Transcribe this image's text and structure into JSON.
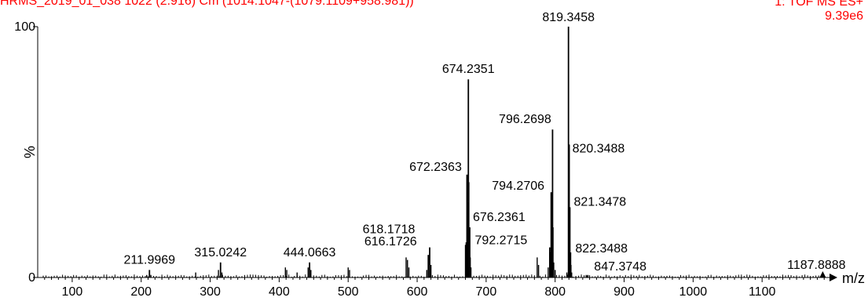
{
  "header": {
    "sample_line": "HRMS_2019_01_038 1022 (2.916) Cm (1014:1047-(1079:1109+958:981))",
    "scan_mode": "1: TOF MS ES+",
    "intensity": "9.39e6"
  },
  "colors": {
    "header_text": "#ff0000",
    "spectrum": "#000000",
    "axis": "#000000"
  },
  "chart_data": {
    "type": "bar",
    "plot_style": "mass spectrum stick plot",
    "xlabel": "m/z",
    "ylabel": "%",
    "xlim": [
      50,
      1200
    ],
    "ylim": [
      0,
      100
    ],
    "x_ticks": [
      100,
      200,
      300,
      400,
      500,
      600,
      700,
      800,
      900,
      1000,
      1100
    ],
    "y_ticks": [
      0,
      100
    ],
    "grid": false,
    "labeled_peaks": [
      {
        "mz": 211.9969,
        "label": "211.9969",
        "intensity": 3
      },
      {
        "mz": 315.0242,
        "label": "315.0242",
        "intensity": 6
      },
      {
        "mz": 444.0663,
        "label": "444.0663",
        "intensity": 6
      },
      {
        "mz": 616.1726,
        "label": "616.1726",
        "intensity": 9
      },
      {
        "mz": 618.1718,
        "label": "618.1718",
        "intensity": 12
      },
      {
        "mz": 672.2363,
        "label": "672.2363",
        "intensity": 41
      },
      {
        "mz": 674.2351,
        "label": "674.2351",
        "intensity": 79
      },
      {
        "mz": 676.2361,
        "label": "676.2361",
        "intensity": 20
      },
      {
        "mz": 792.2715,
        "label": "792.2715",
        "intensity": 12
      },
      {
        "mz": 794.2706,
        "label": "794.2706",
        "intensity": 34
      },
      {
        "mz": 796.2698,
        "label": "796.2698",
        "intensity": 59
      },
      {
        "mz": 819.3458,
        "label": "819.3458",
        "intensity": 100
      },
      {
        "mz": 820.3488,
        "label": "820.3488",
        "intensity": 53
      },
      {
        "mz": 821.3478,
        "label": "821.3478",
        "intensity": 28
      },
      {
        "mz": 822.3488,
        "label": "822.3488",
        "intensity": 10
      },
      {
        "mz": 847.3748,
        "label": "847.3748",
        "intensity": 1
      },
      {
        "mz": 1187.8888,
        "label": "1187.8888",
        "intensity": 1
      }
    ],
    "minor_peaks": [
      {
        "mz": 208,
        "intensity": 1
      },
      {
        "mz": 214,
        "intensity": 1
      },
      {
        "mz": 279,
        "intensity": 2
      },
      {
        "mz": 312,
        "intensity": 3
      },
      {
        "mz": 317,
        "intensity": 2
      },
      {
        "mz": 409,
        "intensity": 4
      },
      {
        "mz": 411,
        "intensity": 3
      },
      {
        "mz": 426,
        "intensity": 2
      },
      {
        "mz": 442,
        "intensity": 4
      },
      {
        "mz": 446,
        "intensity": 3
      },
      {
        "mz": 500,
        "intensity": 4
      },
      {
        "mz": 502,
        "intensity": 3
      },
      {
        "mz": 584,
        "intensity": 8
      },
      {
        "mz": 586,
        "intensity": 7
      },
      {
        "mz": 588,
        "intensity": 4
      },
      {
        "mz": 614,
        "intensity": 3
      },
      {
        "mz": 620,
        "intensity": 5
      },
      {
        "mz": 670,
        "intensity": 13
      },
      {
        "mz": 671,
        "intensity": 14
      },
      {
        "mz": 673,
        "intensity": 30
      },
      {
        "mz": 675,
        "intensity": 38
      },
      {
        "mz": 677,
        "intensity": 8
      },
      {
        "mz": 678,
        "intensity": 4
      },
      {
        "mz": 774,
        "intensity": 8
      },
      {
        "mz": 776,
        "intensity": 5
      },
      {
        "mz": 790,
        "intensity": 4
      },
      {
        "mz": 793,
        "intensity": 10
      },
      {
        "mz": 795,
        "intensity": 22
      },
      {
        "mz": 797,
        "intensity": 20
      },
      {
        "mz": 798,
        "intensity": 6
      },
      {
        "mz": 800,
        "intensity": 3
      },
      {
        "mz": 817,
        "intensity": 2
      },
      {
        "mz": 823,
        "intensity": 5
      },
      {
        "mz": 824,
        "intensity": 2
      },
      {
        "mz": 845,
        "intensity": 1
      }
    ]
  }
}
